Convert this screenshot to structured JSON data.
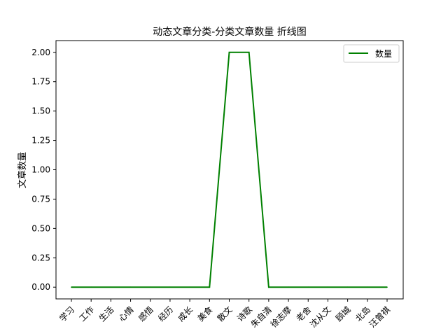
{
  "chart_data": {
    "type": "line",
    "title": "动态文章分类-分类文章数量 折线图",
    "xlabel": "",
    "ylabel": "文章数量",
    "categories": [
      "学习",
      "工作",
      "生活",
      "心情",
      "感悟",
      "经历",
      "成长",
      "美食",
      "散文",
      "诗歌",
      "朱自清",
      "徐志摩",
      "老舍",
      "沈从文",
      "顾城",
      "北岛",
      "汪曾祺"
    ],
    "series": [
      {
        "name": "数量",
        "color": "#008000",
        "values": [
          0,
          0,
          0,
          0,
          0,
          0,
          0,
          0,
          2,
          2,
          0,
          0,
          0,
          0,
          0,
          0,
          0
        ]
      }
    ],
    "ylim": [
      -0.1,
      2.1
    ],
    "yticks": [
      "0.00",
      "0.25",
      "0.50",
      "0.75",
      "1.00",
      "1.25",
      "1.50",
      "1.75",
      "2.00"
    ],
    "ytick_values": [
      0,
      0.25,
      0.5,
      0.75,
      1.0,
      1.25,
      1.5,
      1.75,
      2.0
    ],
    "grid": false,
    "legend_position": "top-right"
  }
}
